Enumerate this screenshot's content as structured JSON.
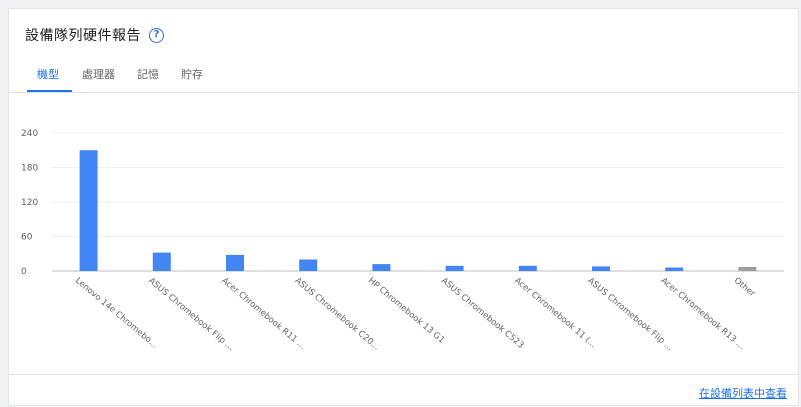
{
  "card": {
    "title": "設備隊列硬件報告",
    "help_icon": "help-circle-icon",
    "tabs": [
      {
        "label": "機型",
        "active": true
      },
      {
        "label": "處理器",
        "active": false
      },
      {
        "label": "記憶",
        "active": false
      },
      {
        "label": "貯存",
        "active": false
      }
    ],
    "footer_link": "在設備列表中查看"
  },
  "colors": {
    "bar": "#4285f4",
    "other_bar": "#9e9e9e",
    "accent": "#1a73e8"
  },
  "chart_data": {
    "type": "bar",
    "categories": [
      "Lenovo 14e Chromebo...",
      "ASUS Chromebook Flip ...",
      "Acer Chromebook R11 ...",
      "ASUS Chromebook C20...",
      "HP Chromebook 13 G1",
      "ASUS Chromebook C523",
      "Acer Chromebook 11 (...",
      "ASUS Chromebook Flip ...",
      "Acer Chromebook R13 ...",
      "Other"
    ],
    "values": [
      210,
      32,
      28,
      20,
      12,
      9,
      9,
      8,
      6,
      7
    ],
    "ylim": [
      0,
      240
    ],
    "yticks": [
      0,
      60,
      120,
      180,
      240
    ],
    "grid": true
  }
}
